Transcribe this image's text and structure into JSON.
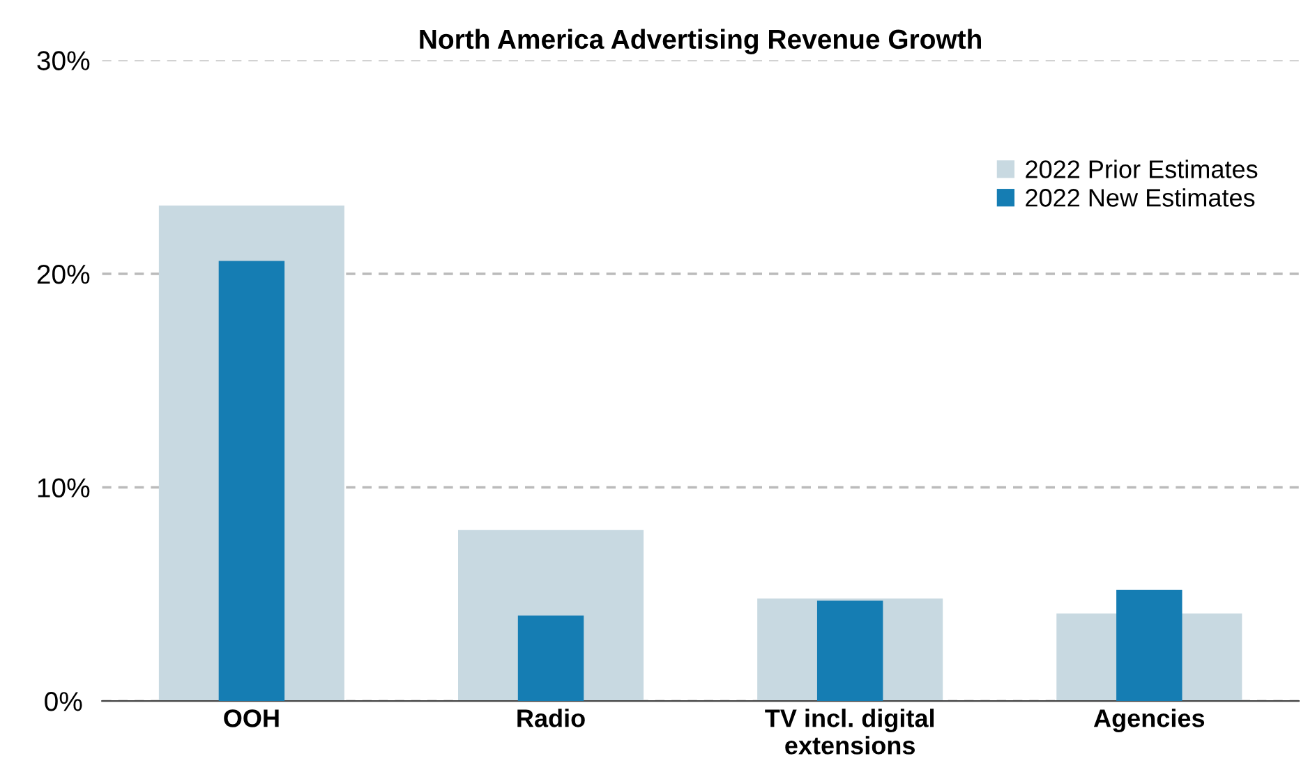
{
  "chart_data": {
    "type": "bar",
    "title": "North America Advertising Revenue Growth",
    "categories": [
      "OOH",
      "Radio",
      "TV incl. digital\nextensions",
      "Agencies"
    ],
    "series": [
      {
        "name": "2022 Prior Estimates",
        "color": "#c8d9e1",
        "values": [
          23.2,
          8.0,
          4.8,
          4.1
        ]
      },
      {
        "name": "2022 New Estimates",
        "color": "#157db3",
        "values": [
          20.6,
          4.0,
          4.7,
          5.2
        ]
      }
    ],
    "ylim": [
      0,
      30
    ],
    "yticks": [
      {
        "value": 0,
        "label": "0%"
      },
      {
        "value": 10,
        "label": "10%"
      },
      {
        "value": 20,
        "label": "20%"
      },
      {
        "value": 30,
        "label": "30%"
      }
    ],
    "grid": "y",
    "legend": "top right"
  }
}
